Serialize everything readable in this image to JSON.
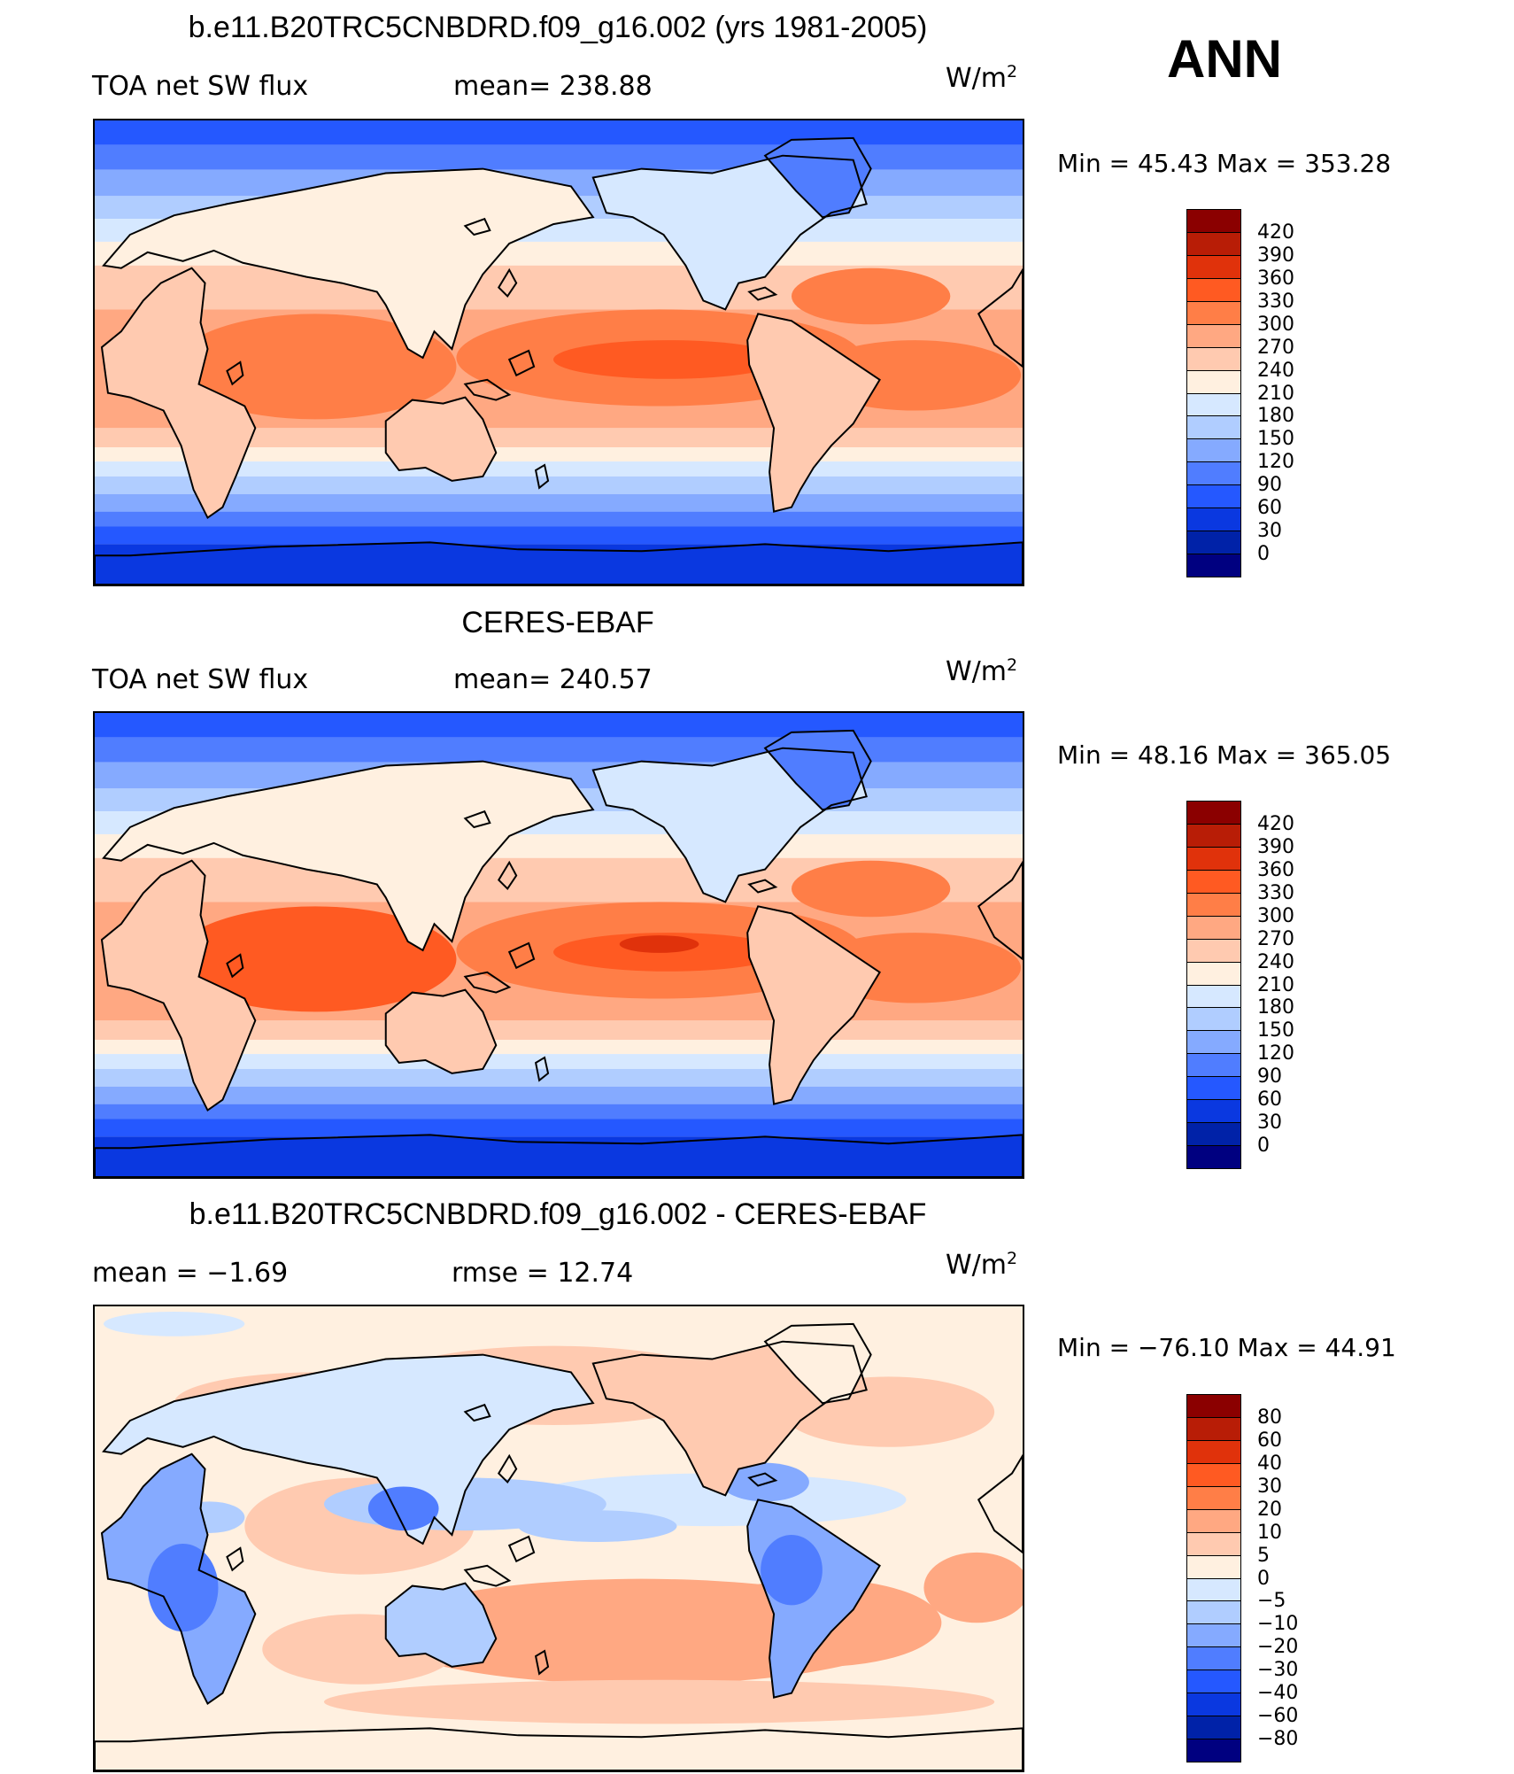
{
  "season": "ANN",
  "units": {
    "base": "W/m",
    "exp": "2"
  },
  "panels": [
    {
      "title": "b.e11.B20TRC5CNBDRD.f09_g16.002 (yrs 1981-2005)",
      "left_label": "TOA net SW flux",
      "stat_label": "mean= 238.88",
      "minmax": "Min =   45.43  Max  =  353.28",
      "map_type": "model"
    },
    {
      "title": "CERES-EBAF",
      "left_label": "TOA net SW flux",
      "stat_label": "mean= 240.57",
      "minmax": "Min =   48.16  Max  =  365.05",
      "map_type": "obs"
    },
    {
      "title": "b.e11.B20TRC5CNBDRD.f09_g16.002 - CERES-EBAF",
      "left_label": "mean =   −1.69",
      "stat_label": "rmse =   12.74",
      "minmax": "Min  =  −76.10  Max  =    44.91",
      "map_type": "diff"
    }
  ],
  "colorbars": {
    "absolute": {
      "labels": [
        "420",
        "390",
        "360",
        "330",
        "300",
        "270",
        "240",
        "210",
        "180",
        "150",
        "120",
        "90",
        "60",
        "30",
        "0"
      ],
      "colors": [
        "#8b0000",
        "#b81d06",
        "#e0320b",
        "#ff5a22",
        "#ff7e47",
        "#ffa882",
        "#ffcab0",
        "#fff0e0",
        "#d6e8ff",
        "#b0cdff",
        "#85aaff",
        "#507dff",
        "#2558ff",
        "#0a38e0",
        "#0022a8",
        "#000080"
      ]
    },
    "difference": {
      "labels": [
        "80",
        "60",
        "40",
        "30",
        "20",
        "10",
        "5",
        "0",
        "−5",
        "−10",
        "−20",
        "−30",
        "−40",
        "−60",
        "−80"
      ],
      "colors": [
        "#8b0000",
        "#b81d06",
        "#e0320b",
        "#ff5a22",
        "#ff7e47",
        "#ffa882",
        "#ffcab0",
        "#fff0e0",
        "#d6e8ff",
        "#b0cdff",
        "#85aaff",
        "#507dff",
        "#2558ff",
        "#0a38e0",
        "#0022a8",
        "#000080"
      ]
    }
  }
}
